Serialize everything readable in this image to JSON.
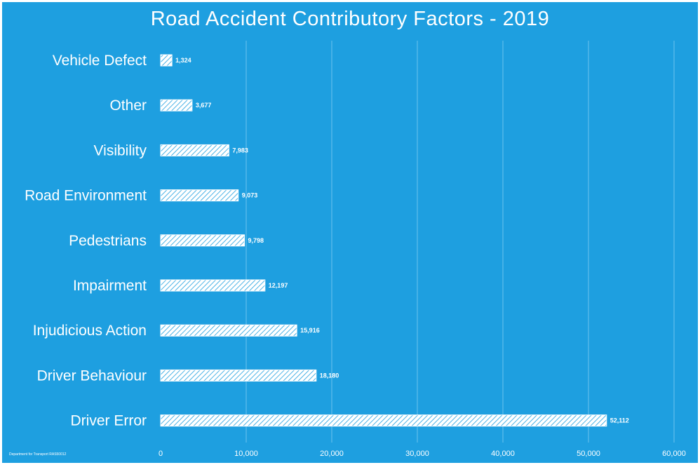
{
  "chart_data": {
    "type": "bar",
    "orientation": "horizontal",
    "title": "Road Accident Contributory Factors - 2019",
    "source_note": "Department for Transport RAS50012",
    "categories": [
      "Vehicle Defect",
      "Other",
      "Visibility",
      "Road Environment",
      "Pedestrians",
      "Impairment",
      "Injudicious Action",
      "Driver Behaviour",
      "Driver Error"
    ],
    "values": [
      1324,
      3677,
      7983,
      9073,
      9798,
      12197,
      15916,
      18180,
      52112
    ],
    "value_labels": [
      "1,324",
      "3,677",
      "7,983",
      "9,073",
      "9,798",
      "12,197",
      "15,916",
      "18,180",
      "52,112"
    ],
    "xlim": [
      0,
      60000
    ],
    "ticks": [
      0,
      10000,
      20000,
      30000,
      40000,
      50000,
      60000
    ],
    "tick_labels": [
      "0",
      "10,000",
      "20,000",
      "30,000",
      "40,000",
      "50,000",
      "60,000"
    ],
    "grid": true,
    "legend": "none",
    "colors": {
      "background": "#1e9fe0",
      "bar_fill": "#ffffff",
      "bar_hatch": "#1e9fe0",
      "gridline": "#6cc3ee",
      "text": "#ffffff"
    }
  }
}
